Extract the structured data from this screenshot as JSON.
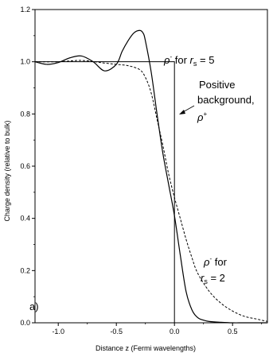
{
  "chart_data": {
    "type": "line",
    "xlabel": "Distance z (Fermi wavelengths)",
    "ylabel": "Charge density (relative to bulk)",
    "xlim": [
      -1.2,
      0.8
    ],
    "ylim": [
      0.0,
      1.2
    ],
    "x_ticks": [
      -1.0,
      -0.5,
      0.0,
      0.5
    ],
    "x_tick_labels": [
      "-1.0",
      "-0.5",
      "0.0",
      "0.5"
    ],
    "y_ticks": [
      0.0,
      0.2,
      0.4,
      0.6,
      0.8,
      1.0,
      1.2
    ],
    "y_tick_labels": [
      "0.0",
      "0.2",
      "0.4",
      "0.6",
      "0.8",
      "1.0",
      "1.2"
    ],
    "grid": false,
    "panel_label": "a)",
    "series": [
      {
        "style": "solid",
        "x": [
          -1.2,
          -1.1,
          -1.0,
          -0.9,
          -0.8,
          -0.7,
          -0.6,
          -0.5,
          -0.45,
          -0.4,
          -0.35,
          -0.3,
          -0.27,
          -0.25,
          -0.2,
          -0.15,
          -0.1,
          -0.05,
          0.0,
          0.05,
          0.1,
          0.15,
          0.2,
          0.25,
          0.3,
          0.4,
          0.5,
          0.6,
          0.8
        ],
        "y": [
          1.0,
          0.99,
          0.997,
          1.015,
          1.022,
          1.0,
          0.965,
          0.99,
          1.04,
          1.08,
          1.11,
          1.12,
          1.11,
          1.08,
          0.96,
          0.8,
          0.65,
          0.53,
          0.41,
          0.26,
          0.12,
          0.05,
          0.02,
          0.01,
          0.005,
          0.002,
          0.0,
          0.0,
          0.0
        ]
      },
      {
        "style": "dashed",
        "x": [
          -1.2,
          -1.0,
          -0.8,
          -0.6,
          -0.5,
          -0.4,
          -0.3,
          -0.25,
          -0.2,
          -0.15,
          -0.1,
          -0.05,
          0.0,
          0.05,
          0.1,
          0.15,
          0.2,
          0.3,
          0.4,
          0.5,
          0.6,
          0.7,
          0.8
        ],
        "y": [
          1.0,
          1.0,
          1.005,
          0.995,
          0.99,
          0.985,
          0.97,
          0.94,
          0.88,
          0.78,
          0.68,
          0.57,
          0.48,
          0.4,
          0.32,
          0.25,
          0.19,
          0.12,
          0.075,
          0.045,
          0.025,
          0.015,
          0.005
        ]
      },
      {
        "style": "solid-thin",
        "x": [
          -1.2,
          0.0,
          0.0
        ],
        "y": [
          1.0,
          1.0,
          0.0
        ]
      }
    ],
    "annotations": {
      "rs5": {
        "rho": "ρ",
        "sup": "-",
        "mid": " for ",
        "r": "r",
        "sub": "s",
        "eq": " = 5"
      },
      "pos_line1": "Positive",
      "pos_line2": "background,",
      "pos_rho": "ρ",
      "pos_sup": "+",
      "rs2_rho": "ρ",
      "rs2_sup": "-",
      "rs2_for": " for",
      "rs2_r": "r",
      "rs2_sub": "s",
      "rs2_eq": " = 2"
    }
  }
}
